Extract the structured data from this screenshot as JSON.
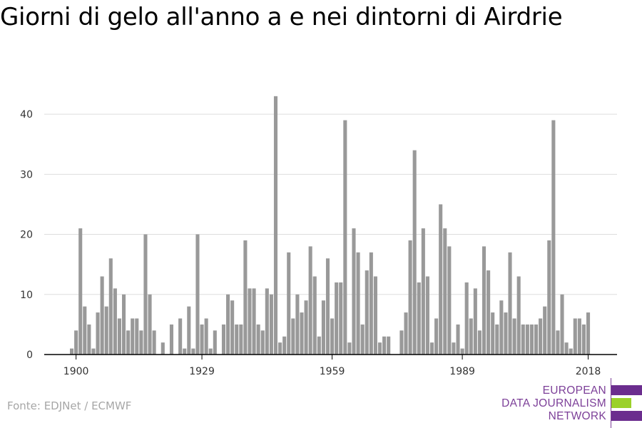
{
  "title": "Giorni di gelo all'anno a e nei dintorni di Airdrie",
  "source": "Fonte: EDJNet / ECMWF",
  "logo": {
    "lines": [
      "EUROPEAN",
      "DATA JOURNALISM",
      "NETWORK"
    ],
    "colors": [
      "#6b2d8e",
      "#9bd12a",
      "#6b2d8e"
    ]
  },
  "colors": {
    "bar": "#999999",
    "grid": "#dddddd",
    "axis": "#000000"
  },
  "chart_data": {
    "type": "bar",
    "xlabel": "",
    "ylabel": "",
    "xlim": [
      1900,
      2021
    ],
    "ylim": [
      0,
      45
    ],
    "x_ticks": [
      1900,
      1929,
      1959,
      1989,
      2018
    ],
    "y_ticks": [
      0,
      10,
      20,
      30,
      40
    ],
    "grid": true,
    "categories": [
      1899,
      1900,
      1901,
      1902,
      1903,
      1904,
      1905,
      1906,
      1907,
      1908,
      1909,
      1910,
      1911,
      1912,
      1913,
      1914,
      1915,
      1916,
      1917,
      1918,
      1919,
      1920,
      1921,
      1922,
      1923,
      1924,
      1925,
      1926,
      1927,
      1928,
      1929,
      1930,
      1931,
      1932,
      1933,
      1934,
      1935,
      1936,
      1937,
      1938,
      1939,
      1940,
      1941,
      1942,
      1943,
      1944,
      1945,
      1946,
      1947,
      1948,
      1949,
      1950,
      1951,
      1952,
      1953,
      1954,
      1955,
      1956,
      1957,
      1958,
      1959,
      1960,
      1961,
      1962,
      1963,
      1964,
      1965,
      1966,
      1967,
      1968,
      1969,
      1970,
      1971,
      1972,
      1973,
      1974,
      1975,
      1976,
      1977,
      1978,
      1979,
      1980,
      1981,
      1982,
      1983,
      1984,
      1985,
      1986,
      1987,
      1988,
      1989,
      1990,
      1991,
      1992,
      1993,
      1994,
      1995,
      1996,
      1997,
      1998,
      1999,
      2000,
      2001,
      2002,
      2003,
      2004,
      2005,
      2006,
      2007,
      2008,
      2009,
      2010,
      2011,
      2012,
      2013,
      2014,
      2015,
      2016,
      2017,
      2018
    ],
    "values": [
      1,
      4,
      21,
      8,
      5,
      1,
      7,
      13,
      8,
      16,
      11,
      6,
      10,
      4,
      6,
      6,
      4,
      20,
      10,
      4,
      0,
      2,
      0,
      5,
      0,
      6,
      1,
      8,
      1,
      20,
      5,
      6,
      1,
      4,
      0,
      5,
      10,
      9,
      5,
      5,
      19,
      11,
      11,
      5,
      4,
      11,
      10,
      43,
      2,
      3,
      17,
      6,
      10,
      7,
      9,
      18,
      13,
      3,
      9,
      16,
      6,
      12,
      12,
      39,
      2,
      21,
      17,
      5,
      14,
      17,
      13,
      2,
      3,
      3,
      0,
      0,
      4,
      7,
      19,
      34,
      12,
      21,
      13,
      2,
      6,
      25,
      21,
      18,
      2,
      5,
      1,
      12,
      6,
      11,
      4,
      18,
      14,
      7,
      5,
      9,
      7,
      17,
      6,
      13,
      5,
      5,
      5,
      5,
      6,
      8,
      19,
      39,
      4,
      10,
      2,
      1,
      6,
      6,
      5,
      7
    ]
  }
}
